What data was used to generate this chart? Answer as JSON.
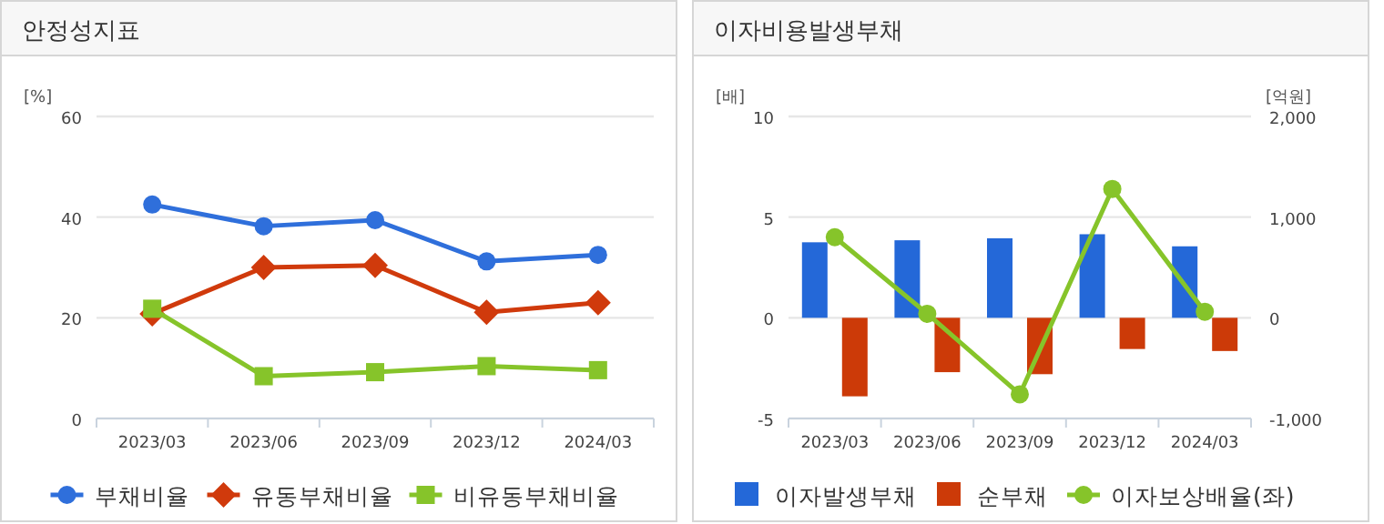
{
  "chart_data": [
    {
      "type": "line",
      "title": "안정성지표",
      "ylabel": "[%]",
      "categories": [
        "2023/03",
        "2023/06",
        "2023/09",
        "2023/12",
        "2024/03"
      ],
      "ylim": [
        0,
        60
      ],
      "yticks": [
        0,
        20,
        40,
        60
      ],
      "grid": "y",
      "legend": "bottom",
      "series": [
        {
          "name": "부채비율",
          "color": "#2f6fdb",
          "marker": "circle",
          "values": [
            42.5,
            38.2,
            39.4,
            31.2,
            32.5
          ]
        },
        {
          "name": "유동부채비율",
          "color": "#d03a0c",
          "marker": "diamond",
          "values": [
            20.8,
            30,
            30.4,
            21.1,
            23
          ]
        },
        {
          "name": "비유동부채비율",
          "color": "#86c42a",
          "marker": "square",
          "values": [
            21.8,
            8.4,
            9.2,
            10.4,
            9.6
          ]
        }
      ]
    },
    {
      "type": "bar",
      "title": "이자비용발생부채",
      "ylabel": "[배]",
      "y2label": "[억원]",
      "categories": [
        "2023/03",
        "2023/06",
        "2023/09",
        "2023/12",
        "2024/03"
      ],
      "ylim": [
        -5,
        10
      ],
      "yticks": [
        -5,
        0,
        5,
        10
      ],
      "y2lim": [
        -1000,
        2000
      ],
      "y2ticks": [
        {
          "value": -1000,
          "label": "-1,000"
        },
        0,
        {
          "value": 1000,
          "label": "1,000"
        },
        {
          "value": 2000,
          "label": "2,000"
        }
      ],
      "grid": "y",
      "legend": "bottom",
      "series": [
        {
          "name": "이자발생부채",
          "color": "#2468d8",
          "axis": "y2",
          "values": [
            750,
            770,
            790,
            830,
            710
          ]
        },
        {
          "name": "순부채",
          "color": "#cc3a08",
          "axis": "y2",
          "values": [
            -780,
            -540,
            -560,
            -310,
            -330
          ]
        },
        {
          "name": "이자보상배율(좌)",
          "type": "line",
          "color": "#86c42a",
          "marker": "circle",
          "values": [
            4,
            0.2,
            -3.8,
            6.4,
            0.3
          ]
        }
      ]
    }
  ]
}
